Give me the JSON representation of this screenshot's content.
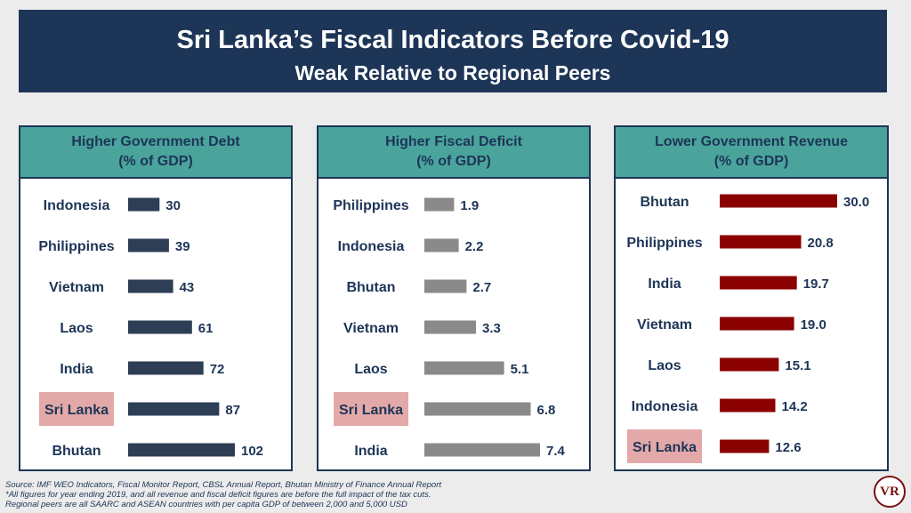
{
  "banner": {
    "title": "Sri Lanka’s Fiscal Indicators Before Covid-19",
    "subtitle": "Weak Relative to Regional Peers"
  },
  "colors": {
    "banner": "#1d3557",
    "panel_header": "#4aa49b",
    "highlight": "#e3a9a9",
    "debt_bar": "#2d3e55",
    "deficit_bar": "#8a8a8a",
    "revenue_bar": "#8b0000"
  },
  "chart_data": [
    {
      "type": "bar",
      "orientation": "horizontal",
      "title": "Higher Government Debt",
      "subtitle": "(% of GDP)",
      "categories": [
        "Indonesia",
        "Philippines",
        "Vietnam",
        "Laos",
        "India",
        "Sri Lanka",
        "Bhutan"
      ],
      "values": [
        30,
        39,
        43,
        61,
        72,
        87,
        102
      ],
      "value_labels": [
        "30",
        "39",
        "43",
        "61",
        "72",
        "87",
        "102"
      ],
      "highlight": "Sri Lanka",
      "bar_color": "#2d3e55",
      "xlim": [
        0,
        102
      ]
    },
    {
      "type": "bar",
      "orientation": "horizontal",
      "title": "Higher Fiscal Deficit",
      "subtitle": "(% of GDP)",
      "categories": [
        "Philippines",
        "Indonesia",
        "Bhutan",
        "Vietnam",
        "Laos",
        "Sri Lanka",
        "India"
      ],
      "values": [
        1.9,
        2.2,
        2.7,
        3.3,
        5.1,
        6.8,
        7.4
      ],
      "value_labels": [
        "1.9",
        "2.2",
        "2.7",
        "3.3",
        "5.1",
        "6.8",
        "7.4"
      ],
      "highlight": "Sri Lanka",
      "bar_color": "#8a8a8a",
      "xlim": [
        0,
        7.4
      ]
    },
    {
      "type": "bar",
      "orientation": "horizontal",
      "title": "Lower Government Revenue",
      "subtitle": "(% of GDP)",
      "categories": [
        "Bhutan",
        "Philippines",
        "India",
        "Vietnam",
        "Laos",
        "Indonesia",
        "Sri Lanka"
      ],
      "values": [
        30.0,
        20.8,
        19.7,
        19.0,
        15.1,
        14.2,
        12.6
      ],
      "value_labels": [
        "30.0",
        "20.8",
        "19.7",
        "19.0",
        "15.1",
        "14.2",
        "12.6"
      ],
      "highlight": "Sri Lanka",
      "bar_color": "#8b0000",
      "xlim": [
        0,
        30
      ]
    }
  ],
  "footnote": {
    "line1": "Source: IMF WEO Indicators, Fiscal Monitor Report, CBSL Annual Report, Bhutan Ministry of Finance Annual Report",
    "line2": "*All figures for year ending 2019, and all revenue and fiscal deficit figures are before the full impact of the tax cuts.",
    "line3": "Regional peers are all SAARC and ASEAN countries with per capita GDP of between 2,000 and 5,000 USD"
  },
  "logo": {
    "text": "VR"
  }
}
